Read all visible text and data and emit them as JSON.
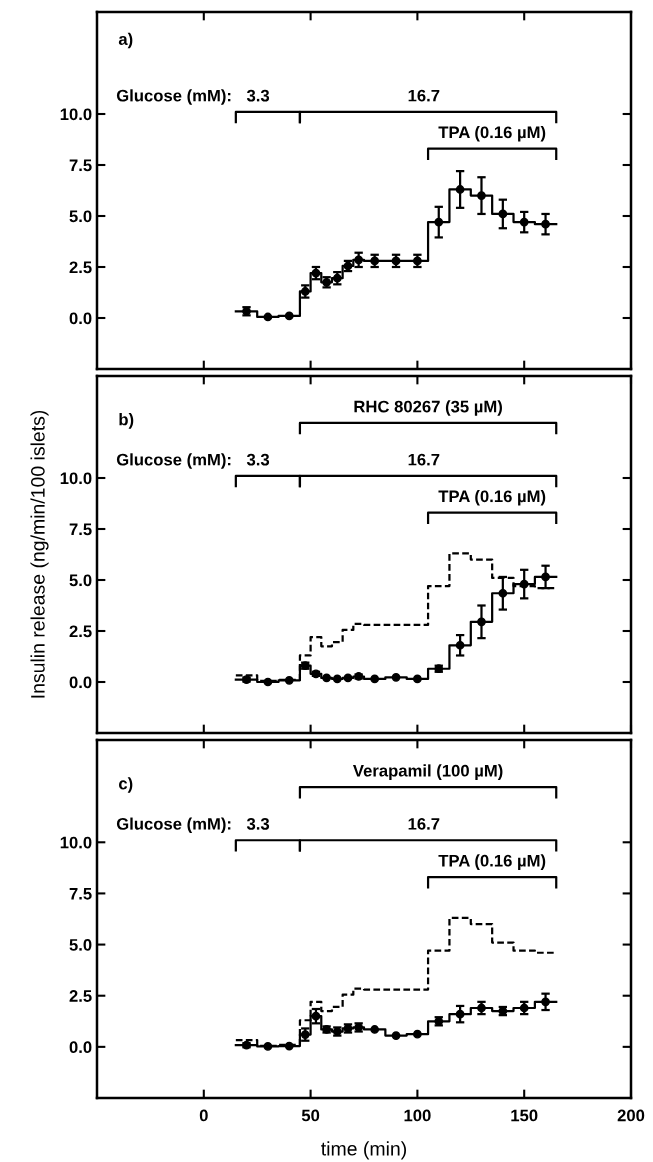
{
  "chart_data": [
    {
      "type": "step",
      "xlim": [
        -50,
        200
      ],
      "ylim": [
        -2.5,
        15
      ],
      "xticks": [
        0,
        50,
        100,
        150,
        200
      ],
      "yticks": [
        {
          "value": 0,
          "label": "0.0"
        },
        {
          "value": 2.5,
          "label": "2.5"
        },
        {
          "value": 5,
          "label": "5.0"
        },
        {
          "value": 7.5,
          "label": "7.5"
        },
        {
          "value": 10,
          "label": "10.0"
        }
      ],
      "tick_labels": "y",
      "annotations": [
        "a)",
        "Glucose (mM):",
        "3.3",
        "16.7",
        "TPA (0.16 µM)"
      ],
      "series": [
        {
          "color": "#000000",
          "line_style": "solid",
          "x": [
            15,
            25,
            35,
            45,
            50,
            55,
            60,
            65,
            70,
            75,
            85,
            95,
            105,
            115,
            125,
            135,
            145,
            155,
            165
          ],
          "values": [
            0.33,
            0.05,
            0.1,
            1.3,
            2.2,
            1.75,
            1.95,
            2.55,
            2.85,
            2.8,
            2.8,
            2.8,
            4.7,
            6.3,
            6.0,
            5.1,
            4.7,
            4.6,
            4.6
          ]
        },
        {
          "type": "scatter",
          "marker": "circle",
          "color": "#000000",
          "x": [
            20,
            30,
            40,
            47.5,
            52.5,
            57.5,
            62.5,
            67.5,
            72.5,
            80,
            90,
            100,
            110,
            120,
            130,
            140,
            150,
            160
          ],
          "values": [
            0.33,
            0.05,
            0.1,
            1.3,
            2.2,
            1.75,
            1.95,
            2.55,
            2.85,
            2.8,
            2.8,
            2.8,
            4.7,
            6.3,
            6.0,
            5.1,
            4.7,
            4.6
          ],
          "errors": [
            0.2,
            null,
            null,
            0.3,
            0.3,
            0.25,
            0.3,
            0.25,
            0.35,
            0.3,
            0.3,
            0.3,
            0.75,
            0.9,
            0.9,
            0.7,
            0.5,
            0.5
          ]
        }
      ]
    },
    {
      "type": "step",
      "xlim": [
        -50,
        200
      ],
      "ylim": [
        -2.5,
        15
      ],
      "xticks": [
        0,
        50,
        100,
        150,
        200
      ],
      "yticks": [
        {
          "value": 0,
          "label": "0.0"
        },
        {
          "value": 2.5,
          "label": "2.5"
        },
        {
          "value": 5,
          "label": "5.0"
        },
        {
          "value": 7.5,
          "label": "7.5"
        },
        {
          "value": 10,
          "label": "10.0"
        }
      ],
      "tick_labels": "y",
      "ylabel": "Insulin release (ng/min/100 islets)",
      "annotations": [
        "b)",
        "Glucose (mM):",
        "3.3",
        "16.7",
        "TPA (0.16 µM)",
        "RHC 80267 (35 µM)"
      ],
      "series": [
        {
          "type": "step",
          "color": "#000000",
          "line_style": "dashed",
          "x": [
            15,
            25,
            35,
            45,
            50,
            55,
            60,
            65,
            70,
            75,
            85,
            95,
            105,
            115,
            125,
            135,
            145,
            155,
            165
          ],
          "values": [
            0.33,
            0.05,
            0.1,
            1.3,
            2.2,
            1.75,
            1.95,
            2.55,
            2.85,
            2.8,
            2.8,
            2.8,
            4.7,
            6.3,
            6.0,
            5.1,
            4.7,
            4.6,
            4.6
          ]
        },
        {
          "type": "step",
          "color": "#000000",
          "line_style": "solid",
          "x": [
            15,
            25,
            35,
            45,
            50,
            55,
            60,
            65,
            70,
            75,
            85,
            95,
            105,
            115,
            125,
            135,
            145,
            155,
            165
          ],
          "values": [
            0.12,
            0.0,
            0.08,
            0.8,
            0.4,
            0.2,
            0.15,
            0.2,
            0.27,
            0.15,
            0.23,
            0.15,
            0.65,
            1.8,
            2.95,
            4.35,
            4.8,
            5.15,
            5.15
          ]
        },
        {
          "type": "scatter",
          "marker": "circle",
          "color": "#000000",
          "x": [
            20,
            30,
            40,
            47.5,
            52.5,
            57.5,
            62.5,
            67.5,
            72.5,
            80,
            90,
            100,
            110,
            120,
            130,
            140,
            150,
            160
          ],
          "values": [
            0.12,
            0.0,
            0.08,
            0.8,
            0.4,
            0.2,
            0.15,
            0.2,
            0.27,
            0.15,
            0.23,
            0.15,
            0.65,
            1.8,
            2.95,
            4.35,
            4.8,
            5.15
          ],
          "errors": [
            0.1,
            null,
            null,
            0.15,
            0.1,
            null,
            null,
            null,
            0.1,
            null,
            null,
            null,
            0.15,
            0.5,
            0.8,
            0.8,
            0.7,
            0.55
          ]
        }
      ]
    },
    {
      "type": "step",
      "xlim": [
        -50,
        200
      ],
      "ylim": [
        -2.5,
        15
      ],
      "xticks": [
        0,
        50,
        100,
        150,
        200
      ],
      "yticks": [
        {
          "value": 0,
          "label": "0.0"
        },
        {
          "value": 2.5,
          "label": "2.5"
        },
        {
          "value": 5,
          "label": "5.0"
        },
        {
          "value": 7.5,
          "label": "7.5"
        },
        {
          "value": 10,
          "label": "10.0"
        }
      ],
      "xlabel": "time (min)",
      "annotations": [
        "c)",
        "Glucose (mM):",
        "3.3",
        "16.7",
        "TPA (0.16 µM)",
        "Verapamil (100 µM)"
      ],
      "series": [
        {
          "type": "step",
          "color": "#000000",
          "line_style": "dashed",
          "x": [
            15,
            25,
            35,
            45,
            50,
            55,
            60,
            65,
            70,
            75,
            85,
            95,
            105,
            115,
            125,
            135,
            145,
            155,
            165
          ],
          "values": [
            0.33,
            0.05,
            0.1,
            1.3,
            2.2,
            1.75,
            1.95,
            2.55,
            2.85,
            2.8,
            2.8,
            2.8,
            4.7,
            6.3,
            6.0,
            5.1,
            4.7,
            4.6,
            4.6
          ]
        },
        {
          "type": "step",
          "color": "#000000",
          "line_style": "solid",
          "x": [
            15,
            25,
            35,
            45,
            50,
            55,
            60,
            65,
            70,
            75,
            85,
            95,
            105,
            115,
            125,
            135,
            145,
            155,
            165
          ],
          "values": [
            0.08,
            0.02,
            0.04,
            0.6,
            1.5,
            0.85,
            0.75,
            0.9,
            0.95,
            0.85,
            0.55,
            0.62,
            1.25,
            1.6,
            1.9,
            1.75,
            1.9,
            2.2,
            2.2
          ]
        },
        {
          "type": "scatter",
          "marker": "circle",
          "color": "#000000",
          "x": [
            20,
            30,
            40,
            47.5,
            52.5,
            57.5,
            62.5,
            67.5,
            72.5,
            80,
            90,
            100,
            110,
            120,
            130,
            140,
            150,
            160
          ],
          "values": [
            0.08,
            0.02,
            0.04,
            0.6,
            1.5,
            0.85,
            0.75,
            0.9,
            0.95,
            0.85,
            0.55,
            0.62,
            1.25,
            1.6,
            1.9,
            1.75,
            1.9,
            2.2
          ],
          "errors": [
            0.1,
            null,
            null,
            0.3,
            0.35,
            0.15,
            0.2,
            0.2,
            0.2,
            null,
            null,
            null,
            0.2,
            0.4,
            0.3,
            0.2,
            0.3,
            0.4
          ]
        }
      ]
    }
  ]
}
